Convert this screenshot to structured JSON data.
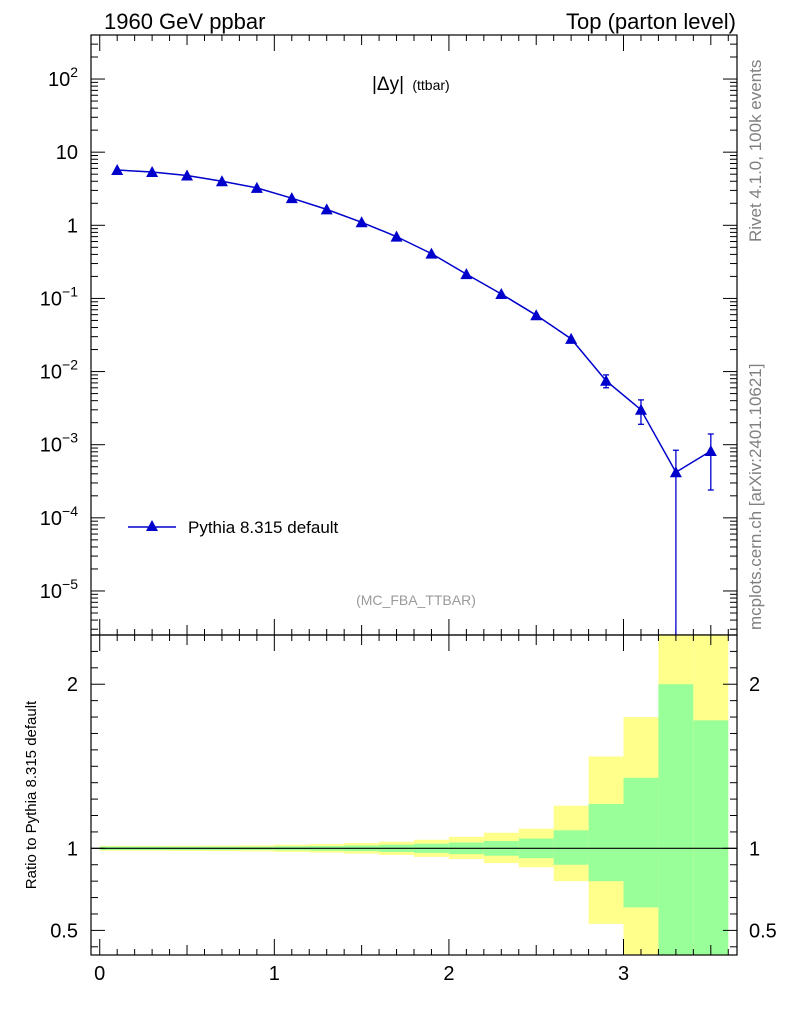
{
  "header": {
    "left": "1960 GeV ppbar",
    "right": "Top (parton level)"
  },
  "side_text": {
    "rivet": "Rivet 4.1.0,  100k events",
    "mcplots": "mcplots.cern.ch [arXiv:2401.10621]"
  },
  "colors": {
    "series": "#0000cc",
    "band_outer": "#ffff8c",
    "band_inner": "#99ff99",
    "watermark": "#9a9a9a"
  },
  "chart_data": [
    {
      "type": "line",
      "panel": "main",
      "title": "|Δy| (ttbar)",
      "title_main": "|Δy|",
      "title_sub": "(ttbar)",
      "analysis_label": "(MC_FBA_TTBAR)",
      "xlabel": "",
      "ylabel": "",
      "yscale": "log",
      "xlim": [
        -0.05,
        3.65
      ],
      "ylim": [
        2.5e-06,
        400
      ],
      "y_tick_labels": [
        {
          "base": "10",
          "exp": "2"
        },
        {
          "base": "10",
          "exp": ""
        },
        {
          "base": "1",
          "exp": ""
        },
        {
          "base": "10",
          "exp": "−1"
        },
        {
          "base": "10",
          "exp": "−2"
        },
        {
          "base": "10",
          "exp": "−3"
        },
        {
          "base": "10",
          "exp": "−4"
        },
        {
          "base": "10",
          "exp": "−5"
        }
      ],
      "legend": {
        "label": "Pythia 8.315 default",
        "position": "bottom-left"
      },
      "series": [
        {
          "name": "Pythia 8.315 default",
          "marker": "triangle-up",
          "x": [
            0.1,
            0.3,
            0.5,
            0.7,
            0.9,
            1.1,
            1.3,
            1.5,
            1.7,
            1.9,
            2.1,
            2.3,
            2.5,
            2.7,
            2.9,
            3.1,
            3.3,
            3.5
          ],
          "y": [
            5.7,
            5.35,
            4.8,
            4.0,
            3.25,
            2.35,
            1.65,
            1.1,
            0.7,
            0.41,
            0.215,
            0.115,
            0.059,
            0.028,
            0.0075,
            0.003,
            0.00042,
            0.00082
          ],
          "err": [
            0.05,
            0.05,
            0.05,
            0.04,
            0.035,
            0.03,
            0.025,
            0.02,
            0.015,
            0.01,
            0.007,
            0.005,
            0.003,
            0.002,
            0.0015,
            0.0011,
            0.00042,
            0.00058
          ]
        }
      ]
    },
    {
      "type": "area",
      "panel": "ratio",
      "title": "",
      "xlabel": "",
      "ylabel": "Ratio to Pythia 8.315 default",
      "xlim": [
        -0.05,
        3.65
      ],
      "ylim": [
        0.35,
        2.3
      ],
      "x_ticks": [
        "0",
        "1",
        "2",
        "3"
      ],
      "y_ticks": [
        "0.5",
        "1",
        "2"
      ],
      "reference_line": 1,
      "bins": [
        {
          "lo": 0.0,
          "hi": 0.2,
          "inner": [
            0.99,
            1.01
          ],
          "outer": [
            0.985,
            1.015
          ]
        },
        {
          "lo": 0.2,
          "hi": 0.4,
          "inner": [
            0.99,
            1.01
          ],
          "outer": [
            0.985,
            1.015
          ]
        },
        {
          "lo": 0.4,
          "hi": 0.6,
          "inner": [
            0.99,
            1.01
          ],
          "outer": [
            0.984,
            1.016
          ]
        },
        {
          "lo": 0.6,
          "hi": 0.8,
          "inner": [
            0.99,
            1.01
          ],
          "outer": [
            0.983,
            1.017
          ]
        },
        {
          "lo": 0.8,
          "hi": 1.0,
          "inner": [
            0.99,
            1.01
          ],
          "outer": [
            0.982,
            1.018
          ]
        },
        {
          "lo": 1.0,
          "hi": 1.2,
          "inner": [
            0.988,
            1.012
          ],
          "outer": [
            0.978,
            1.022
          ]
        },
        {
          "lo": 1.2,
          "hi": 1.4,
          "inner": [
            0.986,
            1.014
          ],
          "outer": [
            0.974,
            1.026
          ]
        },
        {
          "lo": 1.4,
          "hi": 1.6,
          "inner": [
            0.983,
            1.017
          ],
          "outer": [
            0.968,
            1.032
          ]
        },
        {
          "lo": 1.6,
          "hi": 1.8,
          "inner": [
            0.978,
            1.022
          ],
          "outer": [
            0.96,
            1.04
          ]
        },
        {
          "lo": 1.8,
          "hi": 2.0,
          "inner": [
            0.972,
            1.028
          ],
          "outer": [
            0.948,
            1.052
          ]
        },
        {
          "lo": 2.0,
          "hi": 2.2,
          "inner": [
            0.965,
            1.035
          ],
          "outer": [
            0.935,
            1.07
          ]
        },
        {
          "lo": 2.2,
          "hi": 2.4,
          "inner": [
            0.955,
            1.045
          ],
          "outer": [
            0.91,
            1.095
          ]
        },
        {
          "lo": 2.4,
          "hi": 2.6,
          "inner": [
            0.94,
            1.06
          ],
          "outer": [
            0.885,
            1.12
          ]
        },
        {
          "lo": 2.6,
          "hi": 2.8,
          "inner": [
            0.9,
            1.11
          ],
          "outer": [
            0.8,
            1.26
          ]
        },
        {
          "lo": 2.8,
          "hi": 3.0,
          "inner": [
            0.8,
            1.27
          ],
          "outer": [
            0.54,
            1.56
          ]
        },
        {
          "lo": 3.0,
          "hi": 3.2,
          "inner": [
            0.64,
            1.43
          ],
          "outer": [
            0.35,
            1.8
          ]
        },
        {
          "lo": 3.2,
          "hi": 3.4,
          "inner": [
            0.35,
            2.0
          ],
          "outer": [
            0.35,
            2.3
          ]
        },
        {
          "lo": 3.4,
          "hi": 3.6,
          "inner": [
            0.35,
            1.78
          ],
          "outer": [
            0.35,
            2.3
          ]
        }
      ]
    }
  ]
}
